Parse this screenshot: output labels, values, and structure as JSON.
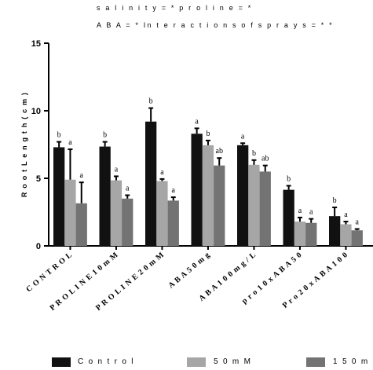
{
  "stats": {
    "line1": "s a l i n i t y = * p r o l i n e = *",
    "line2": "A B A = * In t e r a c t i o n s o f s p r a y s = * *"
  },
  "chart_data": {
    "type": "bar",
    "ylabel": "R o o t L e n g t h ( c m )",
    "xlabel": "",
    "ylim": [
      0,
      15
    ],
    "yticks": [
      0,
      5,
      10,
      15
    ],
    "categories": [
      "C O N T R O L",
      "P R O L I N E 1 0 m M",
      "P R O L I N E 2 0 m M",
      "A B A 5 0 m g",
      "A B A 1 0 0 m g / L",
      "p r o 1 0 x A B A 5 0",
      "P r o 2 0 x A B A 1 0 0"
    ],
    "series": [
      {
        "name": "C o n t r o l",
        "color": "#111111",
        "values": [
          7.3,
          7.35,
          9.2,
          8.3,
          7.45,
          4.15,
          2.2
        ],
        "errors": [
          0.4,
          0.35,
          1.0,
          0.4,
          0.15,
          0.3,
          0.65
        ],
        "labels": [
          "b",
          "b",
          "b",
          "a",
          "a",
          "b",
          "b"
        ]
      },
      {
        "name": "5 0 m M",
        "color": "#a6a6a6",
        "values": [
          4.9,
          4.85,
          4.8,
          7.45,
          6.0,
          1.8,
          1.6
        ],
        "errors": [
          2.25,
          0.3,
          0.15,
          0.35,
          0.35,
          0.3,
          0.2
        ],
        "labels": [
          "a",
          "a",
          "a",
          "b",
          "b",
          "a",
          "a"
        ]
      },
      {
        "name": "1 5 0 m M",
        "color": "#737373",
        "values": [
          3.15,
          3.5,
          3.35,
          5.95,
          5.5,
          1.7,
          1.15
        ],
        "errors": [
          1.55,
          0.25,
          0.25,
          0.55,
          0.45,
          0.3,
          0.1
        ],
        "labels": [
          "a",
          "a",
          "a",
          "ab",
          "ab",
          "a",
          "a"
        ]
      }
    ],
    "legend_position": "bottom"
  }
}
